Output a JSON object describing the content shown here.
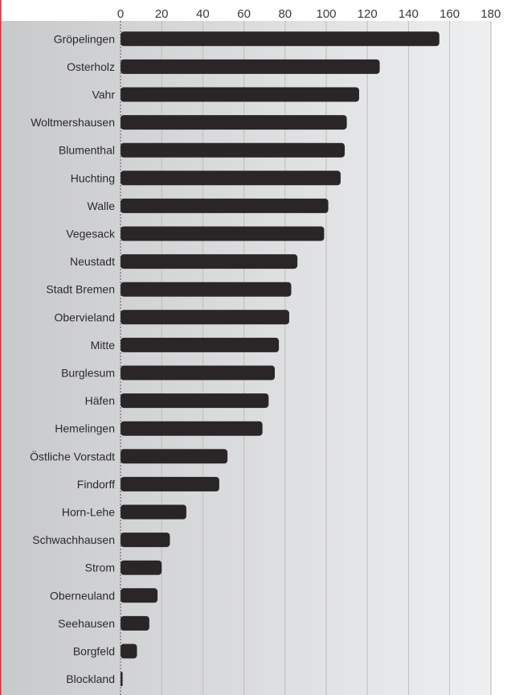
{
  "chart_data": {
    "type": "bar",
    "orientation": "horizontal",
    "title": "",
    "xlabel": "",
    "ylabel": "",
    "xlim": [
      0,
      180
    ],
    "ticks": [
      0,
      20,
      40,
      60,
      80,
      100,
      120,
      140,
      160,
      180
    ],
    "grid": true,
    "categories": [
      "Gröpelingen",
      "Osterholz",
      "Vahr",
      "Woltmershausen",
      "Blumenthal",
      "Huchting",
      "Walle",
      "Vegesack",
      "Neustadt",
      "Stadt Bremen",
      "Obervieland",
      "Mitte",
      "Burglesum",
      "Häfen",
      "Hemelingen",
      "Östliche Vorstadt",
      "Findorff",
      "Horn-Lehe",
      "Schwachhausen",
      "Strom",
      "Oberneuland",
      "Seehausen",
      "Borgfeld",
      "Blockland"
    ],
    "values": [
      155,
      126,
      116,
      110,
      109,
      107,
      101,
      99,
      86,
      83,
      82,
      77,
      75,
      72,
      69,
      52,
      48,
      32,
      24,
      20,
      18,
      14,
      8,
      1
    ],
    "colors": {
      "bar": "#2a2627",
      "background_dark": "#c8c9cb",
      "background_light": "#eeeff0",
      "grid": "#bdbdbd",
      "left_border": "#d2323a"
    }
  }
}
